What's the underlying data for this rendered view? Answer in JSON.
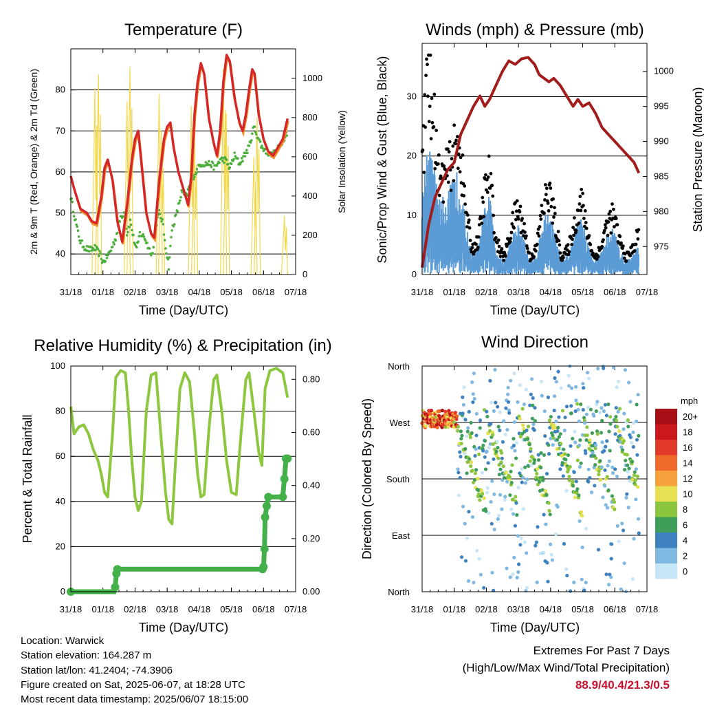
{
  "panels": {
    "temperature": {
      "title": "Temperature (F)",
      "xlabel": "Time (Day/UTC)",
      "ylabel_left": "2m & 9m T (Red, Orange) & 2m Td (Green)",
      "ylabel_right": "Solar Insolation (Yellow)"
    },
    "winds": {
      "title": "Winds (mph) & Pressure (mb)",
      "xlabel": "Time (Day/UTC)",
      "ylabel_left": "Sonic/Prop Wind & Gust (Blue, Black)",
      "ylabel_right": "Station Pressure (Maroon)"
    },
    "humidity": {
      "title": "Relative Humidity (%) & Precipitation (in)",
      "xlabel": "Time (Day/UTC)",
      "ylabel_left": "Percent & Total Rainfall"
    },
    "direction": {
      "title": "Wind Direction",
      "xlabel": "Time (Day/UTC)",
      "ylabel_left": "Direction (Colored By Speed)",
      "legend_title": "mph"
    }
  },
  "footer": {
    "location": "Location: Warwick",
    "elevation": "Station elevation: 164.287 m",
    "latlon": "Station lat/lon: 41.2404; -74.3906",
    "created": "Figure created on Sat, 2025-06-07, at 18:28 UTC",
    "timestamp": "Most recent data timestamp: 2025/06/07 18:15:00"
  },
  "extremes": {
    "title": "Extremes For Past 7 Days",
    "subtitle": "(High/Low/Max Wind/Total Precipitation)",
    "values": "88.9/40.4/21.3/0.5"
  },
  "colors": {
    "temp2m": "#d62728",
    "temp9m": "#f28e2b",
    "dewpoint": "#4caf3c",
    "solar": "#f2d84a",
    "wind_sonic": "#5b9bd5",
    "gust": "#000000",
    "pressure": "#a31c1c",
    "rh": "#8dc63f",
    "rain": "#43b04a"
  },
  "chart_data": [
    {
      "type": "line",
      "name": "temperature",
      "x_ticks": [
        "31/18",
        "01/18",
        "02/18",
        "03/18",
        "04/18",
        "05/18",
        "06/18",
        "07/18"
      ],
      "y_ticks_left": [
        40,
        50,
        60,
        70,
        80
      ],
      "ylim_left": [
        35,
        90
      ],
      "y_ticks_right": [
        0,
        200,
        400,
        600,
        800,
        1000
      ],
      "ylim_right": [
        0,
        1150
      ],
      "grid": true,
      "t_2m_9m": [
        [
          0,
          59
        ],
        [
          0.1,
          56
        ],
        [
          0.3,
          51
        ],
        [
          0.5,
          50
        ],
        [
          0.65,
          48
        ],
        [
          0.8,
          47.5
        ],
        [
          0.95,
          54
        ],
        [
          1.05,
          61
        ],
        [
          1.15,
          63
        ],
        [
          1.3,
          58
        ],
        [
          1.45,
          48
        ],
        [
          1.6,
          43
        ],
        [
          1.75,
          52
        ],
        [
          1.9,
          63
        ],
        [
          2,
          68
        ],
        [
          2.1,
          70
        ],
        [
          2.2,
          62
        ],
        [
          2.35,
          50
        ],
        [
          2.5,
          45
        ],
        [
          2.6,
          44
        ],
        [
          2.75,
          58
        ],
        [
          2.9,
          68
        ],
        [
          3,
          71
        ],
        [
          3.1,
          72
        ],
        [
          3.2,
          66
        ],
        [
          3.35,
          60
        ],
        [
          3.5,
          56
        ],
        [
          3.65,
          52
        ],
        [
          3.75,
          59
        ],
        [
          3.85,
          74
        ],
        [
          3.95,
          82
        ],
        [
          4.05,
          86.5
        ],
        [
          4.15,
          84
        ],
        [
          4.3,
          73
        ],
        [
          4.45,
          67
        ],
        [
          4.55,
          64
        ],
        [
          4.65,
          70
        ],
        [
          4.75,
          82
        ],
        [
          4.85,
          88.5
        ],
        [
          4.95,
          87
        ],
        [
          5.1,
          78
        ],
        [
          5.25,
          72
        ],
        [
          5.35,
          70
        ],
        [
          5.45,
          74
        ],
        [
          5.55,
          80
        ],
        [
          5.65,
          85
        ],
        [
          5.72,
          84
        ],
        [
          5.85,
          74
        ],
        [
          6,
          68
        ],
        [
          6.15,
          65
        ],
        [
          6.3,
          64
        ],
        [
          6.45,
          66
        ],
        [
          6.6,
          68
        ],
        [
          6.75,
          73
        ]
      ],
      "td_2m": [
        [
          0,
          54
        ],
        [
          0.1,
          50
        ],
        [
          0.2,
          46
        ],
        [
          0.3,
          43
        ],
        [
          0.45,
          41.5
        ],
        [
          0.6,
          41
        ],
        [
          0.75,
          41.5
        ],
        [
          0.9,
          40
        ],
        [
          1,
          38
        ],
        [
          1.1,
          39
        ],
        [
          1.25,
          41
        ],
        [
          1.4,
          44
        ],
        [
          1.55,
          49
        ],
        [
          1.65,
          50
        ],
        [
          1.75,
          45
        ],
        [
          1.85,
          48
        ],
        [
          1.95,
          44
        ],
        [
          2.05,
          41
        ],
        [
          2.15,
          45
        ],
        [
          2.3,
          44
        ],
        [
          2.45,
          41
        ],
        [
          2.55,
          40
        ],
        [
          2.65,
          47
        ],
        [
          2.75,
          50
        ],
        [
          2.85,
          48
        ],
        [
          2.95,
          42
        ],
        [
          3.05,
          37
        ],
        [
          3.15,
          46
        ],
        [
          3.3,
          50
        ],
        [
          3.45,
          55
        ],
        [
          3.6,
          54
        ],
        [
          3.75,
          58
        ],
        [
          3.9,
          60
        ],
        [
          4.05,
          62
        ],
        [
          4.2,
          62
        ],
        [
          4.35,
          62
        ],
        [
          4.5,
          61
        ],
        [
          4.65,
          63
        ],
        [
          4.8,
          63
        ],
        [
          4.95,
          61
        ],
        [
          5.1,
          64
        ],
        [
          5.25,
          62
        ],
        [
          5.4,
          64
        ],
        [
          5.55,
          66
        ],
        [
          5.7,
          71
        ],
        [
          5.8,
          69
        ],
        [
          5.95,
          66
        ],
        [
          6.1,
          65
        ],
        [
          6.25,
          64
        ],
        [
          6.4,
          65
        ],
        [
          6.55,
          67
        ],
        [
          6.75,
          70
        ]
      ],
      "solar_peaks": [
        [
          0.75,
          950
        ],
        [
          0.86,
          1020
        ],
        [
          1.75,
          880
        ],
        [
          1.84,
          1060
        ],
        [
          2.75,
          920
        ],
        [
          2.82,
          680
        ],
        [
          3.75,
          860
        ],
        [
          3.85,
          700
        ],
        [
          4.75,
          1050
        ],
        [
          4.84,
          820
        ],
        [
          5.7,
          600
        ],
        [
          5.8,
          800
        ],
        [
          6.65,
          300
        ]
      ]
    },
    {
      "type": "line",
      "name": "winds",
      "x_ticks": [
        "31/18",
        "01/18",
        "02/18",
        "03/18",
        "04/18",
        "05/18",
        "06/18",
        "07/18"
      ],
      "y_ticks_left": [
        0,
        10,
        20,
        30
      ],
      "ylim_left": [
        0,
        39
      ],
      "y_ticks_right": [
        975,
        980,
        985,
        990,
        995,
        1000
      ],
      "ylim_right": [
        971,
        1004
      ],
      "grid": true,
      "pressure": [
        [
          0,
          972
        ],
        [
          0.2,
          978
        ],
        [
          0.4,
          982
        ],
        [
          0.6,
          984
        ],
        [
          0.8,
          986
        ],
        [
          1,
          987
        ],
        [
          1.2,
          991
        ],
        [
          1.4,
          993
        ],
        [
          1.6,
          995
        ],
        [
          1.8,
          996.5
        ],
        [
          1.95,
          995
        ],
        [
          2.1,
          996
        ],
        [
          2.3,
          998
        ],
        [
          2.5,
          1000
        ],
        [
          2.7,
          1001.5
        ],
        [
          2.9,
          1001
        ],
        [
          3.1,
          1001.8
        ],
        [
          3.3,
          1002
        ],
        [
          3.5,
          1001
        ],
        [
          3.65,
          999.5
        ],
        [
          3.8,
          999
        ],
        [
          3.95,
          998.5
        ],
        [
          4.1,
          999
        ],
        [
          4.3,
          998
        ],
        [
          4.5,
          996.5
        ],
        [
          4.7,
          995
        ],
        [
          4.85,
          996
        ],
        [
          5,
          995
        ],
        [
          5.2,
          995.5
        ],
        [
          5.4,
          994
        ],
        [
          5.6,
          992
        ],
        [
          5.8,
          991
        ],
        [
          6,
          990
        ],
        [
          6.2,
          989
        ],
        [
          6.4,
          988
        ],
        [
          6.6,
          987
        ],
        [
          6.75,
          985.5
        ]
      ],
      "sonic_envelope": [
        [
          0,
          12
        ],
        [
          0.15,
          20
        ],
        [
          0.35,
          17
        ],
        [
          0.55,
          11
        ],
        [
          0.75,
          12
        ],
        [
          0.95,
          14
        ],
        [
          1.15,
          16
        ],
        [
          1.35,
          8
        ],
        [
          1.55,
          3
        ],
        [
          1.75,
          4
        ],
        [
          1.95,
          10
        ],
        [
          2.1,
          12
        ],
        [
          2.3,
          4
        ],
        [
          2.55,
          2
        ],
        [
          2.75,
          5
        ],
        [
          2.95,
          8
        ],
        [
          3.15,
          6
        ],
        [
          3.35,
          2
        ],
        [
          3.55,
          3
        ],
        [
          3.75,
          8
        ],
        [
          3.95,
          10
        ],
        [
          4.15,
          6
        ],
        [
          4.35,
          2
        ],
        [
          4.55,
          3
        ],
        [
          4.75,
          6
        ],
        [
          4.95,
          9
        ],
        [
          5.15,
          5
        ],
        [
          5.35,
          2
        ],
        [
          5.55,
          3
        ],
        [
          5.75,
          6
        ],
        [
          5.95,
          7
        ],
        [
          6.15,
          4
        ],
        [
          6.35,
          2
        ],
        [
          6.55,
          3
        ],
        [
          6.75,
          5
        ]
      ],
      "gust_max": 37
    },
    {
      "type": "line",
      "name": "humidity",
      "x_ticks": [
        "31/18",
        "01/18",
        "02/18",
        "03/18",
        "04/18",
        "05/18",
        "06/18",
        "07/18"
      ],
      "y_ticks_left": [
        0,
        20,
        40,
        60,
        80,
        100
      ],
      "ylim_left": [
        0,
        100
      ],
      "y_ticks_right": [
        0.0,
        0.2,
        0.4,
        0.6,
        0.8
      ],
      "ylim_right": [
        0,
        0.85
      ],
      "grid": true,
      "rh": [
        [
          0,
          82
        ],
        [
          0.1,
          70
        ],
        [
          0.25,
          73
        ],
        [
          0.4,
          74
        ],
        [
          0.55,
          70
        ],
        [
          0.7,
          63
        ],
        [
          0.85,
          58
        ],
        [
          0.95,
          52
        ],
        [
          1.05,
          44
        ],
        [
          1.15,
          42
        ],
        [
          1.3,
          70
        ],
        [
          1.4,
          95
        ],
        [
          1.55,
          98
        ],
        [
          1.7,
          97
        ],
        [
          1.8,
          80
        ],
        [
          1.9,
          58
        ],
        [
          2,
          42
        ],
        [
          2.1,
          36
        ],
        [
          2.2,
          40
        ],
        [
          2.35,
          80
        ],
        [
          2.5,
          96
        ],
        [
          2.65,
          97
        ],
        [
          2.8,
          70
        ],
        [
          2.95,
          44
        ],
        [
          3.05,
          32
        ],
        [
          3.15,
          30
        ],
        [
          3.25,
          55
        ],
        [
          3.4,
          90
        ],
        [
          3.55,
          97
        ],
        [
          3.7,
          93
        ],
        [
          3.85,
          70
        ],
        [
          3.95,
          52
        ],
        [
          4.05,
          42
        ],
        [
          4.15,
          43
        ],
        [
          4.3,
          72
        ],
        [
          4.45,
          94
        ],
        [
          4.55,
          96
        ],
        [
          4.7,
          80
        ],
        [
          4.85,
          58
        ],
        [
          5.0,
          44
        ],
        [
          5.15,
          43
        ],
        [
          5.3,
          70
        ],
        [
          5.45,
          94
        ],
        [
          5.55,
          97
        ],
        [
          5.7,
          80
        ],
        [
          5.85,
          62
        ],
        [
          5.95,
          56
        ],
        [
          6.05,
          90
        ],
        [
          6.2,
          98
        ],
        [
          6.4,
          99
        ],
        [
          6.6,
          97
        ],
        [
          6.75,
          86
        ]
      ],
      "rain": [
        [
          0,
          0
        ],
        [
          1.35,
          0
        ],
        [
          1.38,
          2
        ],
        [
          1.42,
          8
        ],
        [
          1.45,
          10
        ],
        [
          5.97,
          10
        ],
        [
          6.0,
          11
        ],
        [
          6.03,
          19
        ],
        [
          6.05,
          33
        ],
        [
          6.1,
          38
        ],
        [
          6.15,
          42
        ],
        [
          6.6,
          42
        ],
        [
          6.65,
          50
        ],
        [
          6.7,
          59
        ],
        [
          6.75,
          59
        ]
      ]
    },
    {
      "type": "scatter",
      "name": "wind_direction",
      "x_ticks": [
        "31/18",
        "01/18",
        "02/18",
        "03/18",
        "04/18",
        "05/18",
        "06/18",
        "07/18"
      ],
      "y_ticks": [
        "North",
        "East",
        "South",
        "West",
        "North"
      ],
      "ylim": [
        0,
        360
      ],
      "grid": true,
      "legend_levels": [
        "20+",
        "18",
        "16",
        "14",
        "12",
        "10",
        "8",
        "6",
        "4",
        "2",
        "0"
      ],
      "legend_colors": [
        "#a50f15",
        "#cb181d",
        "#e23a2a",
        "#f06a2b",
        "#f7a13c",
        "#e6e052",
        "#8cc63f",
        "#3f9e5a",
        "#3f82c0",
        "#7fb8e0",
        "#c6e6f7"
      ]
    }
  ]
}
